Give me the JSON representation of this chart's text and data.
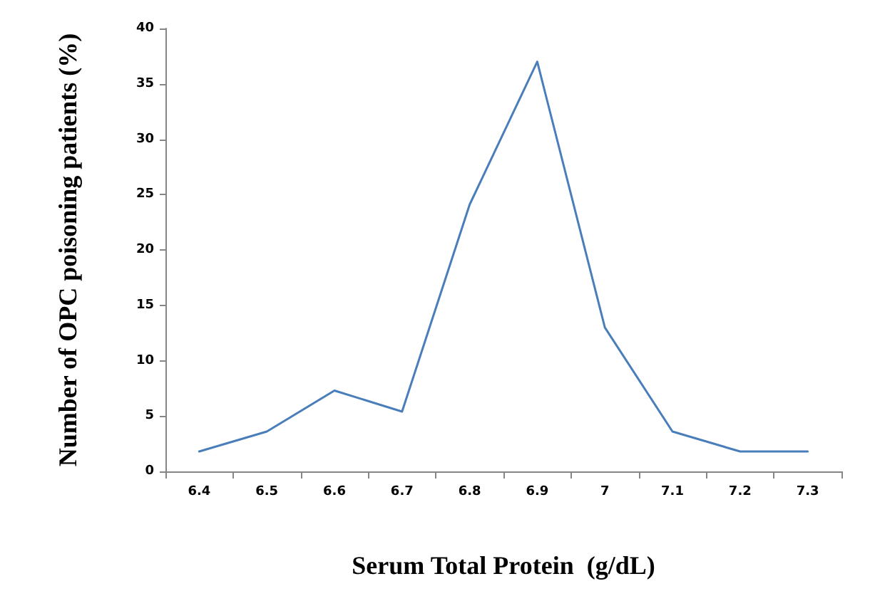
{
  "chart_data": {
    "type": "line",
    "xlabel": "Serum Total Protein  (g/dL)",
    "ylabel": "Number of OPC poisoning patients (%)",
    "categories": [
      "6.4",
      "6.5",
      "6.6",
      "6.7",
      "6.8",
      "6.9",
      "7",
      "7.1",
      "7.2",
      "7.3"
    ],
    "series": [
      {
        "color": "#4a7ebb",
        "values": [
          1.8,
          3.6,
          7.3,
          5.4,
          24.1,
          37,
          13,
          3.6,
          1.8,
          1.8
        ]
      }
    ],
    "ylim": [
      0,
      40
    ],
    "yticks": [
      0,
      5,
      10,
      15,
      20,
      25,
      30,
      35,
      40
    ],
    "grid": false,
    "marker": "none",
    "line_style": "solid"
  }
}
